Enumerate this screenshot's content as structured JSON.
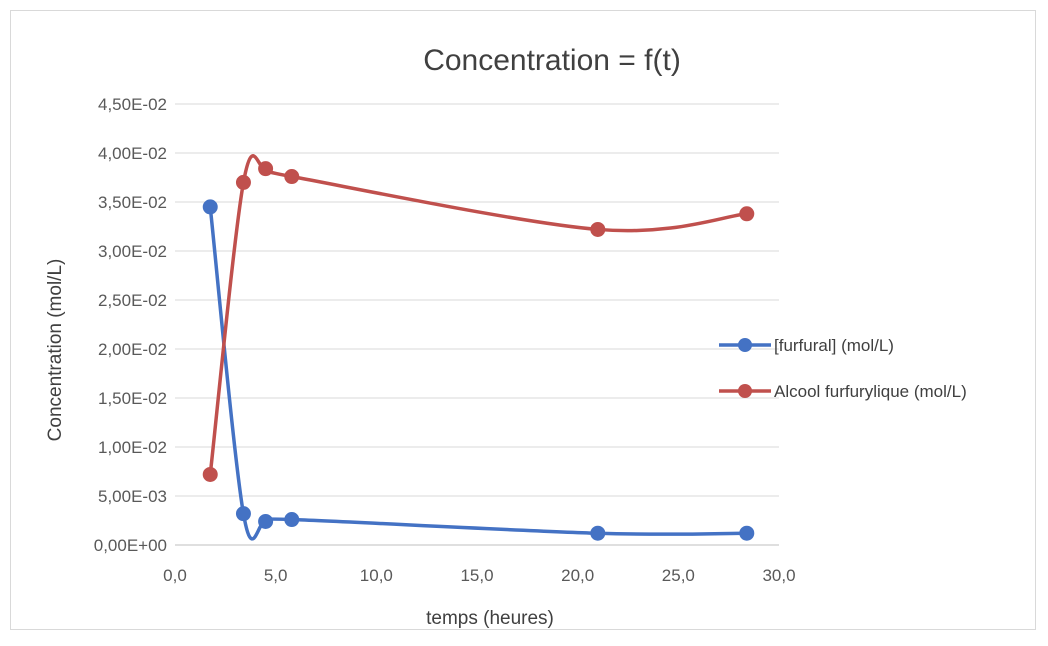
{
  "chart_data": {
    "type": "line",
    "title": "Concentration = f(t)",
    "xlabel": "temps (heures)",
    "ylabel": "Concentration (mol/L)",
    "xlim": [
      0,
      30
    ],
    "ylim": [
      0,
      0.045
    ],
    "x_ticks": [
      "0,0",
      "5,0",
      "10,0",
      "15,0",
      "20,0",
      "25,0",
      "30,0"
    ],
    "y_ticks": [
      "0,00E+00",
      "5,00E-03",
      "1,00E-02",
      "1,50E-02",
      "2,00E-02",
      "2,50E-02",
      "3,00E-02",
      "3,50E-02",
      "4,00E-02",
      "4,50E-02"
    ],
    "grid": "horizontal",
    "legend_position": "right",
    "smoothed": true,
    "series": [
      {
        "name": "[furfural] (mol/L)",
        "color": "#4472C4",
        "points": [
          [
            1.75,
            0.0345
          ],
          [
            3.4,
            0.0032
          ],
          [
            4.5,
            0.0024
          ],
          [
            5.8,
            0.0026
          ],
          [
            21.0,
            0.0012
          ],
          [
            28.4,
            0.0012
          ]
        ]
      },
      {
        "name": "Alcool furfurylique (mol/L)",
        "color": "#C0504D",
        "points": [
          [
            1.75,
            0.0072
          ],
          [
            3.4,
            0.037
          ],
          [
            4.5,
            0.0384
          ],
          [
            5.8,
            0.0376
          ],
          [
            21.0,
            0.0322
          ],
          [
            28.4,
            0.0338
          ]
        ]
      }
    ]
  }
}
